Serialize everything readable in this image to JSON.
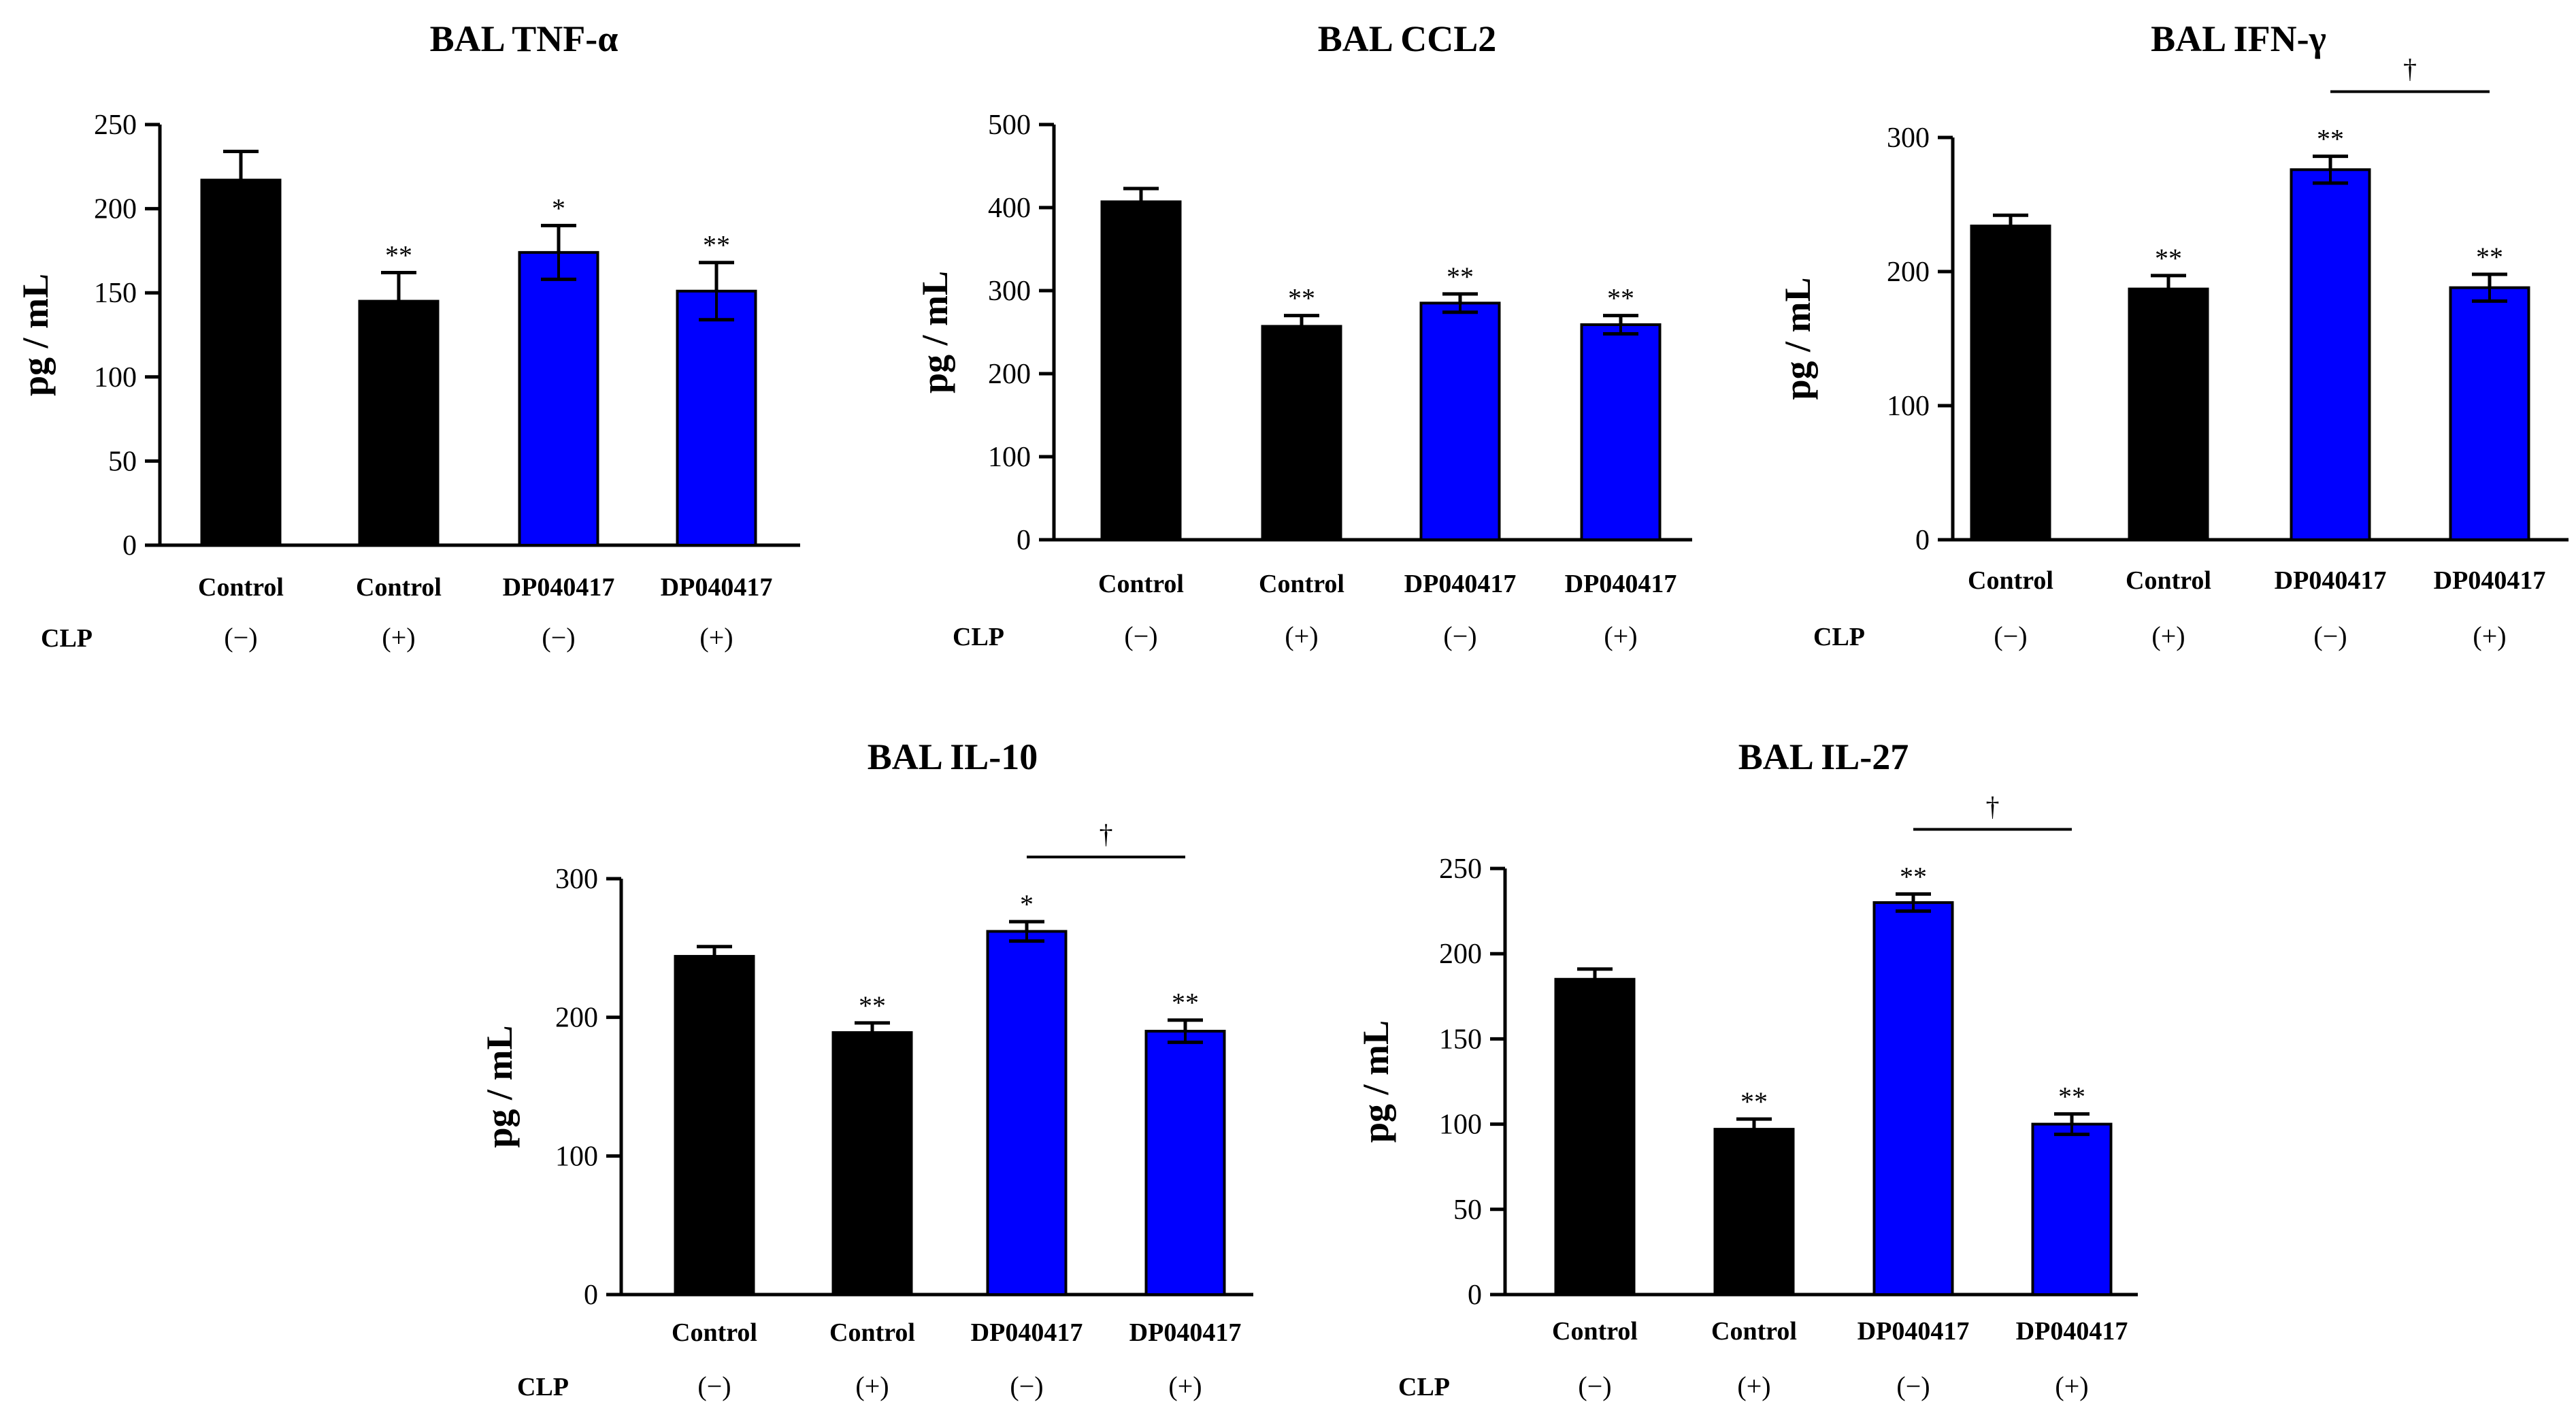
{
  "row_label": "CLP",
  "chart_data": [
    {
      "type": "bar",
      "title": "BAL TNF-α",
      "ylabel": "pg / mL",
      "xlabel": "",
      "ylim": [
        0,
        250
      ],
      "yticks": [
        0,
        50,
        100,
        150,
        200,
        250
      ],
      "categories": [
        "Control",
        "Control",
        "DP040417",
        "DP040417"
      ],
      "clp": [
        "(−)",
        "(+)",
        "(−)",
        "(+)"
      ],
      "values": [
        217,
        145,
        174,
        151
      ],
      "errors": [
        17,
        17,
        16,
        17
      ],
      "colors": [
        "#000000",
        "#000000",
        "#0000ff",
        "#0000ff"
      ],
      "significance": [
        "",
        "**",
        "*",
        "**"
      ],
      "bracket": null
    },
    {
      "type": "bar",
      "title": "BAL CCL2",
      "ylabel": "pg / mL",
      "xlabel": "",
      "ylim": [
        0,
        500
      ],
      "yticks": [
        0,
        100,
        200,
        300,
        400,
        500
      ],
      "categories": [
        "Control",
        "Control",
        "DP040417",
        "DP040417"
      ],
      "clp": [
        "(−)",
        "(+)",
        "(−)",
        "(+)"
      ],
      "values": [
        407,
        257,
        285,
        259
      ],
      "errors": [
        16,
        13,
        11,
        11
      ],
      "colors": [
        "#000000",
        "#000000",
        "#0000ff",
        "#0000ff"
      ],
      "significance": [
        "",
        "**",
        "**",
        "**"
      ],
      "bracket": null
    },
    {
      "type": "bar",
      "title": "BAL IFN-γ",
      "ylabel": "pg / mL",
      "xlabel": "",
      "ylim": [
        0,
        300
      ],
      "yticks": [
        0,
        100,
        200,
        300
      ],
      "categories": [
        "Control",
        "Control",
        "DP040417",
        "DP040417"
      ],
      "clp": [
        "(−)",
        "(+)",
        "(−)",
        "(+)"
      ],
      "values": [
        234,
        187,
        276,
        188
      ],
      "errors": [
        8,
        10,
        10,
        10
      ],
      "colors": [
        "#000000",
        "#000000",
        "#0000ff",
        "#0000ff"
      ],
      "significance": [
        "",
        "**",
        "**",
        "**"
      ],
      "bracket": {
        "from": 2,
        "to": 3,
        "label": "†"
      }
    },
    {
      "type": "bar",
      "title": "BAL IL-10",
      "ylabel": "pg / mL",
      "xlabel": "",
      "ylim": [
        0,
        300
      ],
      "yticks": [
        0,
        100,
        200,
        300
      ],
      "categories": [
        "Control",
        "Control",
        "DP040417",
        "DP040417"
      ],
      "clp": [
        "(−)",
        "(+)",
        "(−)",
        "(+)"
      ],
      "values": [
        244,
        189,
        262,
        190
      ],
      "errors": [
        7,
        7,
        7,
        8
      ],
      "colors": [
        "#000000",
        "#000000",
        "#0000ff",
        "#0000ff"
      ],
      "significance": [
        "",
        "**",
        "*",
        "**"
      ],
      "bracket": {
        "from": 2,
        "to": 3,
        "label": "†"
      }
    },
    {
      "type": "bar",
      "title": "BAL IL-27",
      "ylabel": "pg / mL",
      "xlabel": "",
      "ylim": [
        0,
        250
      ],
      "yticks": [
        0,
        50,
        100,
        150,
        200,
        250
      ],
      "categories": [
        "Control",
        "Control",
        "DP040417",
        "DP040417"
      ],
      "clp": [
        "(−)",
        "(+)",
        "(−)",
        "(+)"
      ],
      "values": [
        185,
        97,
        230,
        100
      ],
      "errors": [
        6,
        6,
        5,
        6
      ],
      "colors": [
        "#000000",
        "#000000",
        "#0000ff",
        "#0000ff"
      ],
      "significance": [
        "",
        "**",
        "**",
        "**"
      ],
      "bracket": {
        "from": 2,
        "to": 3,
        "label": "†"
      }
    }
  ]
}
